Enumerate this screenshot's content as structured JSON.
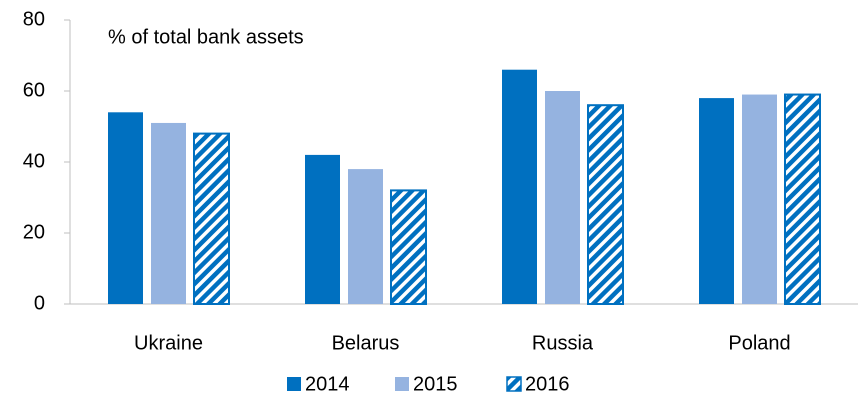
{
  "chart_data": {
    "type": "bar",
    "subtitle": "% of total bank assets",
    "categories": [
      "Ukraine",
      "Belarus",
      "Russia",
      "Poland"
    ],
    "series": [
      {
        "name": "2014",
        "color": "#0070c0",
        "values": [
          54,
          42,
          66,
          58
        ]
      },
      {
        "name": "2015",
        "color": "#95b3e0",
        "values": [
          51,
          38,
          60,
          59
        ]
      },
      {
        "name": "2016",
        "color": "#0070c0",
        "hatch": true,
        "values": [
          48,
          32,
          56,
          59
        ]
      }
    ],
    "ylim": [
      0,
      80
    ],
    "yticks": [
      0,
      20,
      40,
      60,
      80
    ],
    "grid": false,
    "legend": "bottom"
  }
}
